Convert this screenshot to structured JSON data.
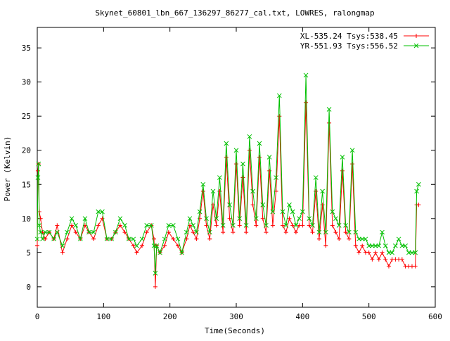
{
  "chart_data": {
    "type": "line",
    "title": "Skynet_60801_lbn_667_136297_86277_cal.txt, LOWRES, ralongmap",
    "xlabel": "Time(Seconds)",
    "ylabel": "Power (Kelvin)",
    "xlim": [
      0,
      600
    ],
    "ylim": [
      -3,
      38
    ],
    "xticks": [
      0,
      100,
      200,
      300,
      400,
      500,
      600
    ],
    "yticks": [
      0,
      5,
      10,
      15,
      20,
      25,
      30,
      35
    ],
    "grid": false,
    "legend_position": "top-right",
    "series": [
      {
        "name": "XL-535.24 Tsys:538.45",
        "color": "#ff0000",
        "marker": "plus",
        "x": [
          0,
          1,
          2,
          3,
          5,
          8,
          12,
          18,
          25,
          30,
          38,
          45,
          52,
          58,
          65,
          72,
          78,
          85,
          92,
          98,
          105,
          112,
          118,
          125,
          132,
          138,
          145,
          150,
          158,
          165,
          172,
          176,
          178,
          180,
          185,
          192,
          198,
          205,
          212,
          218,
          225,
          230,
          235,
          240,
          245,
          250,
          255,
          260,
          265,
          270,
          275,
          280,
          285,
          290,
          295,
          300,
          305,
          310,
          315,
          320,
          325,
          330,
          335,
          340,
          345,
          350,
          355,
          360,
          365,
          370,
          375,
          380,
          385,
          390,
          395,
          400,
          405,
          410,
          415,
          420,
          425,
          430,
          435,
          440,
          445,
          450,
          455,
          460,
          465,
          470,
          475,
          480,
          485,
          490,
          495,
          500,
          505,
          510,
          515,
          520,
          525,
          530,
          535,
          540,
          545,
          550,
          555,
          560,
          565,
          570,
          572,
          575
        ],
        "y": [
          6,
          17,
          18,
          11,
          10,
          8,
          7,
          8,
          7,
          9,
          5,
          7,
          9,
          8,
          7,
          9,
          8,
          7,
          9,
          10,
          7,
          7,
          8,
          9,
          8,
          7,
          6,
          5,
          6,
          8,
          9,
          7,
          0,
          6,
          5,
          6,
          8,
          7,
          6,
          5,
          7,
          9,
          8,
          7,
          10,
          14,
          9,
          7,
          12,
          9,
          14,
          8,
          19,
          10,
          8,
          18,
          9,
          16,
          8,
          20,
          12,
          9,
          19,
          10,
          8,
          17,
          9,
          14,
          25,
          9,
          8,
          10,
          9,
          8,
          9,
          9,
          27,
          9,
          8,
          14,
          7,
          12,
          6,
          24,
          9,
          8,
          7,
          17,
          8,
          7,
          18,
          6,
          5,
          6,
          5,
          5,
          4,
          5,
          4,
          5,
          4,
          3,
          4,
          4,
          4,
          4,
          3,
          3,
          3,
          3,
          12,
          12
        ]
      },
      {
        "name": "YR-551.93 Tsys:556.52",
        "color": "#00c000",
        "marker": "cross",
        "x": [
          0,
          1,
          2,
          3,
          5,
          8,
          12,
          18,
          25,
          30,
          38,
          45,
          52,
          58,
          65,
          72,
          78,
          85,
          92,
          98,
          105,
          112,
          118,
          125,
          132,
          138,
          145,
          150,
          158,
          165,
          172,
          176,
          178,
          180,
          185,
          192,
          198,
          205,
          212,
          218,
          225,
          230,
          235,
          240,
          245,
          250,
          255,
          260,
          265,
          270,
          275,
          280,
          285,
          290,
          295,
          300,
          305,
          310,
          315,
          320,
          325,
          330,
          335,
          340,
          345,
          350,
          355,
          360,
          365,
          370,
          375,
          380,
          385,
          390,
          395,
          400,
          405,
          410,
          415,
          420,
          425,
          430,
          435,
          440,
          445,
          450,
          455,
          460,
          465,
          470,
          475,
          480,
          485,
          490,
          495,
          500,
          505,
          510,
          515,
          520,
          525,
          530,
          535,
          540,
          545,
          550,
          555,
          560,
          565,
          570,
          572,
          575
        ],
        "y": [
          7,
          16,
          18,
          9,
          8,
          7,
          8,
          8,
          7,
          8,
          6,
          8,
          10,
          9,
          7,
          10,
          8,
          8,
          11,
          11,
          7,
          7,
          8,
          10,
          9,
          7,
          7,
          6,
          7,
          9,
          9,
          6,
          2,
          6,
          5,
          7,
          9,
          9,
          7,
          5,
          8,
          10,
          9,
          8,
          11,
          15,
          10,
          8,
          14,
          10,
          16,
          9,
          21,
          12,
          9,
          20,
          10,
          18,
          9,
          22,
          14,
          10,
          21,
          12,
          9,
          19,
          11,
          16,
          28,
          11,
          9,
          12,
          11,
          9,
          10,
          11,
          31,
          10,
          9,
          16,
          8,
          14,
          8,
          26,
          11,
          10,
          9,
          19,
          9,
          8,
          20,
          8,
          7,
          7,
          7,
          6,
          6,
          6,
          6,
          8,
          6,
          5,
          5,
          6,
          7,
          6,
          6,
          5,
          5,
          5,
          14,
          15
        ]
      }
    ]
  }
}
